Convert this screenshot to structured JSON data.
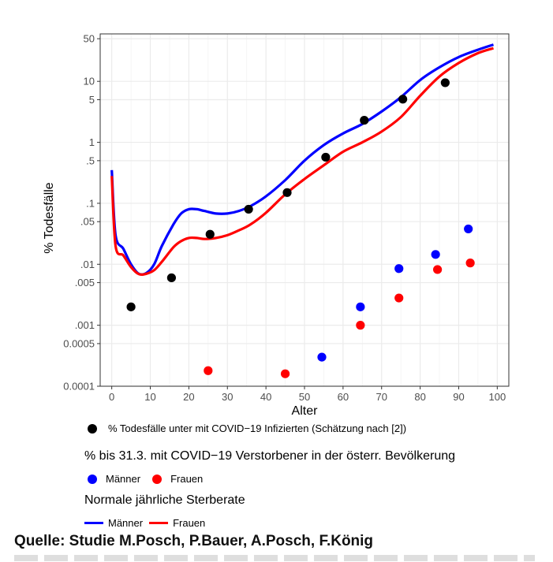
{
  "chart_data": {
    "type": "scatter",
    "title": "",
    "xlabel": "Alter",
    "ylabel": "% Todesfälle",
    "xlim": [
      -3,
      103
    ],
    "ylim": [
      0.0001,
      60
    ],
    "y_scale": "log",
    "grid": true,
    "x_ticks": [
      0,
      10,
      20,
      30,
      40,
      50,
      60,
      70,
      80,
      90,
      100
    ],
    "x_tick_labels": [
      "0",
      "10",
      "20",
      "30",
      "40",
      "50",
      "60",
      "70",
      "80",
      "90",
      "100"
    ],
    "y_ticks": [
      0.0001,
      0.0005,
      0.001,
      0.005,
      0.01,
      0.05,
      0.1,
      0.5,
      1,
      5,
      10,
      50
    ],
    "y_tick_labels": [
      "0.0001",
      "0.0005",
      ".001",
      ".005",
      ".01",
      ".05",
      ".1",
      ".5",
      "1",
      "5",
      "10",
      "50"
    ],
    "series": [
      {
        "name": "% Todesfälle unter mit COVID−19 Infizierten (Schätzung nach [2])",
        "kind": "points",
        "color": "#000000",
        "x": [
          5,
          15.5,
          25.5,
          35.5,
          45.5,
          55.5,
          65.5,
          75.5,
          86.5
        ],
        "y": [
          0.002,
          0.006,
          0.031,
          0.08,
          0.15,
          0.57,
          2.3,
          5.1,
          9.5
        ]
      },
      {
        "name": "Männer",
        "kind": "points",
        "color": "#0000ff",
        "x": [
          54.5,
          64.5,
          74.5,
          84,
          92.5
        ],
        "y": [
          0.0003,
          0.002,
          0.0085,
          0.0145,
          0.038
        ]
      },
      {
        "name": "Frauen",
        "kind": "points",
        "color": "#ff0000",
        "x": [
          25,
          45,
          64.5,
          74.5,
          84.5,
          93
        ],
        "y": [
          0.00018,
          0.00016,
          0.001,
          0.0028,
          0.0082,
          0.0105
        ]
      },
      {
        "name": "Männer",
        "kind": "line",
        "color": "#0000ff",
        "x": [
          0,
          1,
          3,
          5,
          7,
          9,
          11,
          13,
          16,
          18,
          20,
          22,
          24,
          27,
          30,
          33,
          36,
          40,
          45,
          50,
          55,
          60,
          65,
          70,
          75,
          80,
          85,
          90,
          95,
          99
        ],
        "y": [
          0.35,
          0.03,
          0.018,
          0.01,
          0.007,
          0.0072,
          0.01,
          0.02,
          0.045,
          0.068,
          0.08,
          0.08,
          0.075,
          0.068,
          0.068,
          0.075,
          0.09,
          0.13,
          0.24,
          0.5,
          0.9,
          1.4,
          2.0,
          3.2,
          5.5,
          10.5,
          17,
          25,
          33,
          40
        ]
      },
      {
        "name": "Frauen",
        "kind": "line",
        "color": "#ff0000",
        "x": [
          0,
          1,
          3,
          5,
          7,
          9,
          11,
          13,
          16,
          18,
          20,
          22,
          24,
          27,
          30,
          33,
          36,
          40,
          45,
          50,
          55,
          60,
          65,
          70,
          75,
          80,
          85,
          90,
          95,
          99
        ],
        "y": [
          0.28,
          0.02,
          0.014,
          0.009,
          0.0069,
          0.007,
          0.008,
          0.011,
          0.019,
          0.024,
          0.027,
          0.027,
          0.026,
          0.027,
          0.03,
          0.036,
          0.045,
          0.07,
          0.14,
          0.25,
          0.42,
          0.7,
          1.0,
          1.5,
          2.6,
          5.8,
          12,
          20,
          29,
          35
        ]
      }
    ]
  },
  "legend": {
    "entry1": "% Todesfälle unter mit COVID−19 Infizierten (Schätzung nach [2])",
    "group2_title": "% bis 31.3. mit COVID−19 Verstorbener in der österr. Bevölkerung",
    "group2_men": "Männer",
    "group2_women": "Frauen",
    "group3_title": "Normale jährliche Sterberate",
    "group3_men": "Männer",
    "group3_women": "Frauen"
  },
  "source": "Quelle: Studie M.Posch, P.Bauer, A.Posch, F.König",
  "colors": {
    "black": "#000000",
    "blue": "#0000ff",
    "red": "#ff0000",
    "grid": "#ebebeb",
    "panel_border": "#333333"
  }
}
